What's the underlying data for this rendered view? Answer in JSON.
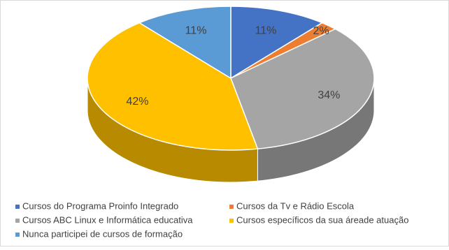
{
  "chart_data": {
    "type": "pie",
    "categories": [
      "Cursos do Programa Proinfo Integrado",
      "Cursos da Tv e Rádio Escola",
      "Cursos ABC Linux e Informática educativa",
      "Cursos específicos da sua áreade atuação",
      "Nunca participei de cursos de formação"
    ],
    "values": [
      11,
      2,
      34,
      42,
      11
    ],
    "value_labels": [
      "11%",
      "2%",
      "34%",
      "42%",
      "11%"
    ],
    "colors": [
      "#4472c4",
      "#ed7d31",
      "#a5a5a5",
      "#ffc000",
      "#5b9bd5"
    ],
    "legend": "bottom"
  }
}
